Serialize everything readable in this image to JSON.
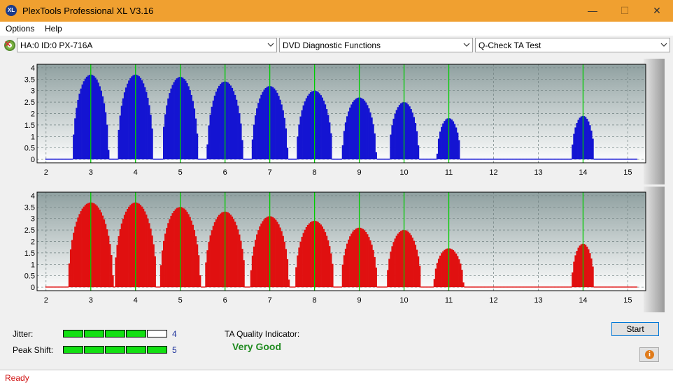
{
  "window": {
    "title": "PlexTools Professional XL V3.16",
    "app_icon_text": "XL",
    "minimize": "—",
    "maximize": "☐",
    "close": "✕"
  },
  "menu": [
    "Options",
    "Help"
  ],
  "toolbar": {
    "drive": "HA:0 ID:0  PX-716A",
    "function": "DVD Diagnostic Functions",
    "test": "Q-Check TA Test"
  },
  "colors": {
    "titlebar": "#f0a030",
    "top_chart_bars": "#1414d2",
    "bottom_chart_bars": "#e01010",
    "marker_lines": "#00cc00",
    "meter_on": "#12e012",
    "quality": "#1f8a1f",
    "status": "#d01010"
  },
  "chart_data": [
    {
      "type": "bar",
      "series_color": "#1414d2",
      "x_ticks": [
        2,
        3,
        4,
        5,
        6,
        7,
        8,
        9,
        10,
        11,
        12,
        13,
        14,
        15
      ],
      "y_ticks": [
        0,
        0.5,
        1,
        1.5,
        2,
        2.5,
        3,
        3.5,
        4
      ],
      "xlim": [
        1.8,
        15.4
      ],
      "ylim": [
        -0.15,
        4.15
      ],
      "markers": [
        3,
        4,
        5,
        6,
        7,
        8,
        9,
        10,
        11,
        14
      ],
      "peaks": [
        {
          "center": 3.0,
          "height": 3.7,
          "width": 0.4
        },
        {
          "center": 4.0,
          "height": 3.7,
          "width": 0.4
        },
        {
          "center": 5.0,
          "height": 3.6,
          "width": 0.4
        },
        {
          "center": 6.0,
          "height": 3.4,
          "width": 0.4
        },
        {
          "center": 7.0,
          "height": 3.2,
          "width": 0.4
        },
        {
          "center": 8.0,
          "height": 3.0,
          "width": 0.4
        },
        {
          "center": 9.0,
          "height": 2.7,
          "width": 0.38
        },
        {
          "center": 10.0,
          "height": 2.5,
          "width": 0.33
        },
        {
          "center": 11.0,
          "height": 1.8,
          "width": 0.26
        },
        {
          "center": 14.0,
          "height": 1.9,
          "width": 0.25
        }
      ]
    },
    {
      "type": "bar",
      "series_color": "#e01010",
      "x_ticks": [
        2,
        3,
        4,
        5,
        6,
        7,
        8,
        9,
        10,
        11,
        12,
        13,
        14,
        15
      ],
      "y_ticks": [
        0,
        0.5,
        1,
        1.5,
        2,
        2.5,
        3,
        3.5,
        4
      ],
      "xlim": [
        1.8,
        15.4
      ],
      "ylim": [
        -0.15,
        4.15
      ],
      "markers": [
        3,
        4,
        5,
        6,
        7,
        8,
        9,
        10,
        11,
        14
      ],
      "peaks": [
        {
          "center": 3.0,
          "height": 3.7,
          "width": 0.5
        },
        {
          "center": 4.0,
          "height": 3.7,
          "width": 0.47
        },
        {
          "center": 5.0,
          "height": 3.5,
          "width": 0.45
        },
        {
          "center": 6.0,
          "height": 3.3,
          "width": 0.45
        },
        {
          "center": 7.0,
          "height": 3.1,
          "width": 0.43
        },
        {
          "center": 8.0,
          "height": 2.9,
          "width": 0.43
        },
        {
          "center": 9.0,
          "height": 2.6,
          "width": 0.4
        },
        {
          "center": 10.0,
          "height": 2.5,
          "width": 0.38
        },
        {
          "center": 11.0,
          "height": 1.7,
          "width": 0.33
        },
        {
          "center": 14.0,
          "height": 1.9,
          "width": 0.25
        }
      ]
    }
  ],
  "metrics": {
    "jitter_label": "Jitter:",
    "jitter_value": "4",
    "jitter_level": 4,
    "peak_shift_label": "Peak Shift:",
    "peak_shift_value": "5",
    "peak_shift_level": 5,
    "max_level": 5
  },
  "quality": {
    "title": "TA Quality Indicator:",
    "value": "Very Good"
  },
  "buttons": {
    "start": "Start",
    "info": "i"
  },
  "status": "Ready"
}
